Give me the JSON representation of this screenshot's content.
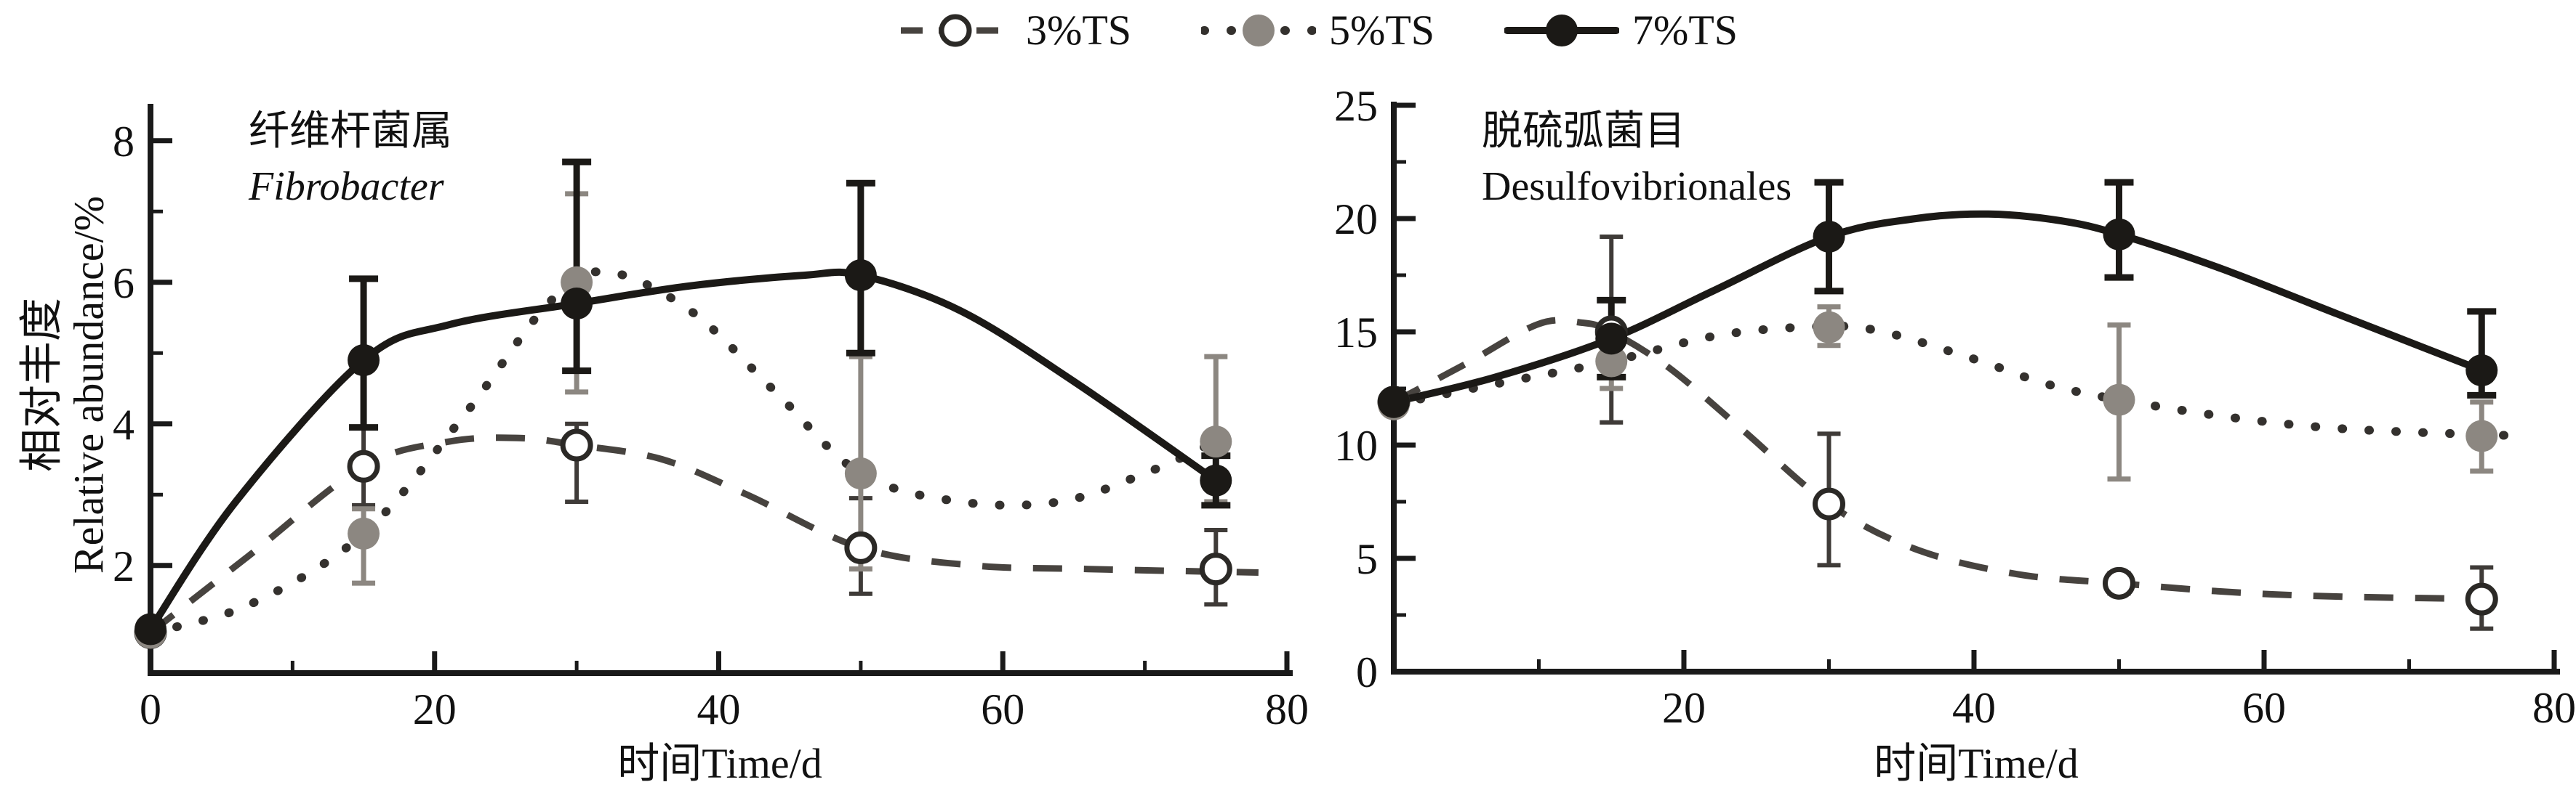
{
  "figure": {
    "legend": {
      "items": [
        {
          "label": "3%TS",
          "line_style": "dashed",
          "marker": "open-circle"
        },
        {
          "label": "5%TS",
          "line_style": "dotted",
          "marker": "gray-circle"
        },
        {
          "label": "7%TS",
          "line_style": "solid",
          "marker": "black-circle"
        }
      ]
    },
    "y_axis_label_zh": "相对丰度",
    "y_axis_label_en": "Relative abundance/%",
    "colors": {
      "black_series": "#1b1916",
      "gray_series": "#8c8781",
      "dashed_series": "#47433f",
      "dotted_line": "#34312e",
      "error_dark": "#3f3b38",
      "axis": "#1a1a1a",
      "text": "#111111",
      "background": "#ffffff"
    }
  },
  "chart_data": [
    {
      "type": "line",
      "panel": "left",
      "title_zh": "纤维杆菌属",
      "title_en": "Fibrobacter",
      "title_en_italic": true,
      "xlabel": "时间Time/d",
      "ylabel": "相对丰度 Relative abundance/%",
      "xlim": [
        0,
        80
      ],
      "ylim": [
        0.5,
        8.5
      ],
      "x_major_ticks": [
        0,
        20,
        40,
        60,
        80
      ],
      "x_tick_labels": [
        "0",
        "20",
        "40",
        "60",
        "80"
      ],
      "x_minor_ticks": [
        10,
        30,
        50,
        70
      ],
      "y_major_ticks": [
        2,
        4,
        6,
        8
      ],
      "y_tick_labels": [
        "2",
        "4",
        "6",
        "8"
      ],
      "y_minor_ticks": [
        1,
        3,
        5,
        7
      ],
      "x": [
        0,
        15,
        30,
        50,
        75
      ],
      "series": [
        {
          "name": "3%TS",
          "values": [
            1.05,
            3.4,
            3.7,
            2.25,
            1.95
          ],
          "err_lo": [
            null,
            2.85,
            2.9,
            1.6,
            1.45
          ],
          "err_hi": [
            null,
            3.95,
            4.0,
            2.95,
            2.5
          ],
          "curve": [
            [
              0,
              1.05
            ],
            [
              7,
              2.15
            ],
            [
              15,
              3.4
            ],
            [
              21,
              3.75
            ],
            [
              26,
              3.8
            ],
            [
              30,
              3.7
            ],
            [
              36,
              3.5
            ],
            [
              42,
              3.0
            ],
            [
              50,
              2.25
            ],
            [
              58,
              2.0
            ],
            [
              66,
              1.95
            ],
            [
              78,
              1.9
            ]
          ]
        },
        {
          "name": "5%TS",
          "values": [
            1.05,
            2.45,
            6.0,
            3.3,
            3.75
          ],
          "err_lo": [
            null,
            1.75,
            4.45,
            1.95,
            2.9
          ],
          "err_hi": [
            null,
            2.8,
            7.25,
            4.95,
            4.95
          ],
          "curve": [
            [
              0,
              1.05
            ],
            [
              7,
              1.45
            ],
            [
              15,
              2.45
            ],
            [
              22,
              4.1
            ],
            [
              28,
              5.7
            ],
            [
              32,
              6.15
            ],
            [
              38,
              5.6
            ],
            [
              44,
              4.45
            ],
            [
              50,
              3.3
            ],
            [
              57,
              2.9
            ],
            [
              64,
              2.9
            ],
            [
              70,
              3.3
            ],
            [
              75,
              3.75
            ]
          ]
        },
        {
          "name": "7%TS",
          "values": [
            1.1,
            4.9,
            5.7,
            6.1,
            3.2
          ],
          "err_lo": [
            null,
            3.95,
            4.75,
            5.0,
            2.85
          ],
          "err_hi": [
            null,
            6.05,
            7.7,
            7.4,
            3.55
          ],
          "curve": [
            [
              0,
              1.1
            ],
            [
              6,
              2.9
            ],
            [
              15,
              4.9
            ],
            [
              21,
              5.4
            ],
            [
              30,
              5.7
            ],
            [
              38,
              5.95
            ],
            [
              46,
              6.1
            ],
            [
              50,
              6.1
            ],
            [
              57,
              5.6
            ],
            [
              65,
              4.6
            ],
            [
              75,
              3.2
            ]
          ]
        }
      ]
    },
    {
      "type": "line",
      "panel": "right",
      "title_zh": "脱硫弧菌目",
      "title_en": "Desulfovibrionales",
      "title_en_italic": false,
      "xlabel": "时间Time/d",
      "xlim": [
        0,
        80
      ],
      "ylim": [
        0,
        25
      ],
      "x_major_ticks": [
        0,
        20,
        40,
        60,
        80
      ],
      "x_tick_labels": [
        "",
        "20",
        "40",
        "60",
        "80"
      ],
      "x_minor_ticks": [
        10,
        30,
        50,
        70
      ],
      "y_major_ticks": [
        0,
        5,
        10,
        15,
        20,
        25
      ],
      "y_tick_labels": [
        "0",
        "5",
        "10",
        "15",
        "20",
        "25"
      ],
      "y_minor_ticks": [
        2.5,
        7.5,
        12.5,
        17.5,
        22.5
      ],
      "x": [
        0,
        15,
        30,
        50,
        75
      ],
      "series": [
        {
          "name": "3%TS",
          "values": [
            11.9,
            15.0,
            7.4,
            3.9,
            3.2
          ],
          "err_lo": [
            null,
            11.0,
            4.7,
            3.45,
            1.9
          ],
          "err_hi": [
            null,
            19.2,
            10.5,
            4.35,
            4.6
          ],
          "curve": [
            [
              0,
              11.9
            ],
            [
              5,
              13.6
            ],
            [
              10,
              15.35
            ],
            [
              13,
              15.4
            ],
            [
              15,
              15.0
            ],
            [
              19,
              13.4
            ],
            [
              24,
              10.7
            ],
            [
              30,
              7.4
            ],
            [
              36,
              5.4
            ],
            [
              43,
              4.3
            ],
            [
              50,
              3.9
            ],
            [
              58,
              3.5
            ],
            [
              66,
              3.3
            ],
            [
              77,
              3.2
            ]
          ]
        },
        {
          "name": "5%TS",
          "values": [
            11.8,
            13.7,
            15.2,
            12.0,
            10.4
          ],
          "err_lo": [
            null,
            12.5,
            14.4,
            8.5,
            8.85
          ],
          "err_hi": [
            null,
            14.9,
            16.1,
            15.3,
            11.9
          ],
          "curve": [
            [
              0,
              11.8
            ],
            [
              7,
              12.7
            ],
            [
              15,
              13.7
            ],
            [
              22,
              14.8
            ],
            [
              28,
              15.2
            ],
            [
              33,
              15.1
            ],
            [
              40,
              13.8
            ],
            [
              45,
              12.7
            ],
            [
              50,
              12.0
            ],
            [
              58,
              11.2
            ],
            [
              66,
              10.7
            ],
            [
              78,
              10.4
            ]
          ]
        },
        {
          "name": "7%TS",
          "values": [
            11.9,
            14.7,
            19.2,
            19.3,
            13.3
          ],
          "err_lo": [
            null,
            13.0,
            16.8,
            17.4,
            12.2
          ],
          "err_hi": [
            null,
            16.4,
            21.6,
            21.6,
            15.9
          ],
          "curve": [
            [
              0,
              11.9
            ],
            [
              7,
              13.0
            ],
            [
              15,
              14.7
            ],
            [
              22,
              16.8
            ],
            [
              30,
              19.2
            ],
            [
              36,
              20.0
            ],
            [
              41,
              20.2
            ],
            [
              46,
              19.9
            ],
            [
              50,
              19.3
            ],
            [
              57,
              17.8
            ],
            [
              65,
              15.8
            ],
            [
              75,
              13.3
            ]
          ]
        }
      ]
    }
  ]
}
